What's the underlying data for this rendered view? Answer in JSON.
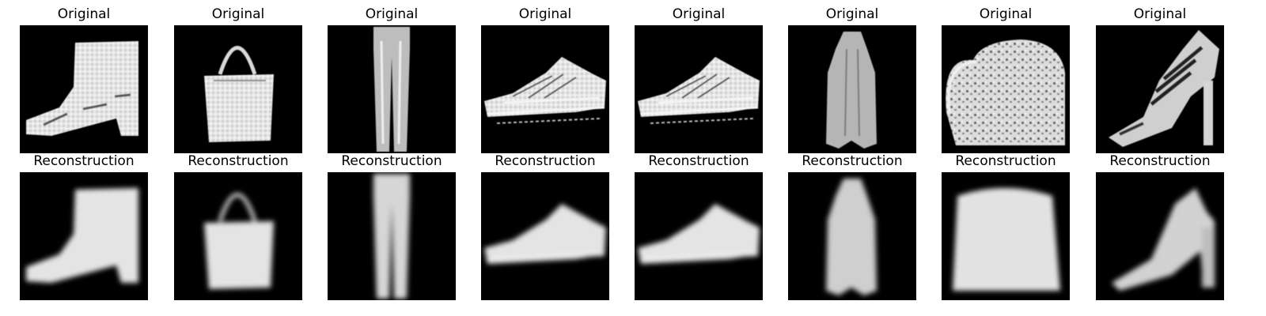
{
  "figure": {
    "row_titles": [
      "Original",
      "Reconstruction"
    ],
    "columns": [
      {
        "item": "ankle-boot",
        "original": "Original",
        "reconstruction": "Reconstruction"
      },
      {
        "item": "bag-with-handle",
        "original": "Original",
        "reconstruction": "Reconstruction"
      },
      {
        "item": "trouser",
        "original": "Original",
        "reconstruction": "Reconstruction"
      },
      {
        "item": "sneaker",
        "original": "Original",
        "reconstruction": "Reconstruction"
      },
      {
        "item": "sneaker",
        "original": "Original",
        "reconstruction": "Reconstruction"
      },
      {
        "item": "dress",
        "original": "Original",
        "reconstruction": "Reconstruction"
      },
      {
        "item": "bag",
        "original": "Original",
        "reconstruction": "Reconstruction"
      },
      {
        "item": "sandal",
        "original": "Original",
        "reconstruction": "Reconstruction"
      }
    ],
    "colors": {
      "background": "#ffffff",
      "image_background": "#000000",
      "foreground_light": "#e8e8e8",
      "foreground_mid": "#9a9a9a"
    }
  }
}
